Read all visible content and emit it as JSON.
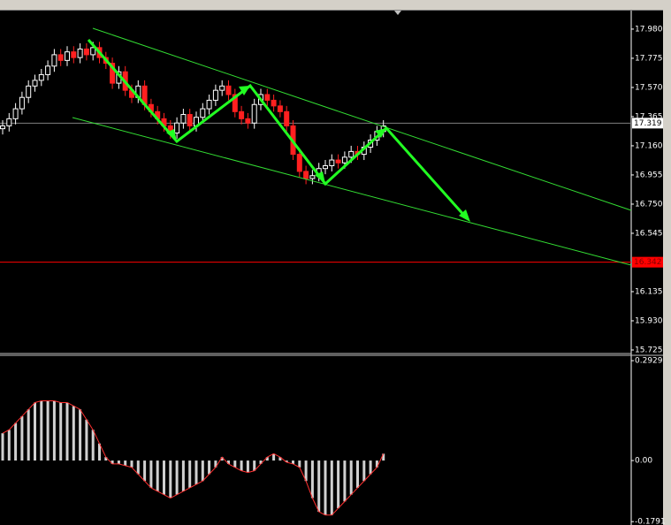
{
  "chart_data": [
    {
      "type": "candlestick",
      "open": [
        17.28,
        17.3,
        17.35,
        17.42,
        17.5,
        17.58,
        17.62,
        17.66,
        17.72,
        17.8,
        17.76,
        17.82,
        17.78,
        17.84,
        17.8,
        17.85,
        17.78,
        17.74,
        17.6,
        17.68,
        17.55,
        17.5,
        17.58,
        17.45,
        17.4,
        17.35,
        17.3,
        17.25,
        17.32,
        17.38,
        17.3,
        17.36,
        17.42,
        17.48,
        17.55,
        17.58,
        17.52,
        17.4,
        17.35,
        17.32,
        17.45,
        17.52,
        17.48,
        17.44,
        17.4,
        17.3,
        17.1,
        16.98,
        16.93,
        16.95,
        17.0,
        17.02,
        17.06,
        17.04,
        17.08,
        17.12,
        17.1,
        17.15,
        17.2,
        17.26
      ],
      "high": [
        17.34,
        17.39,
        17.46,
        17.54,
        17.62,
        17.66,
        17.7,
        17.76,
        17.84,
        17.84,
        17.86,
        17.86,
        17.88,
        17.88,
        17.89,
        17.89,
        17.82,
        17.78,
        17.72,
        17.72,
        17.59,
        17.62,
        17.62,
        17.49,
        17.44,
        17.39,
        17.34,
        17.36,
        17.42,
        17.42,
        17.4,
        17.46,
        17.52,
        17.59,
        17.62,
        17.62,
        17.56,
        17.44,
        17.39,
        17.49,
        17.56,
        17.56,
        17.52,
        17.48,
        17.44,
        17.34,
        17.14,
        17.02,
        16.99,
        17.04,
        17.06,
        17.1,
        17.1,
        17.12,
        17.16,
        17.16,
        17.19,
        17.24,
        17.3,
        17.34
      ],
      "low": [
        17.24,
        17.26,
        17.31,
        17.38,
        17.46,
        17.54,
        17.58,
        17.62,
        17.68,
        17.72,
        17.72,
        17.74,
        17.74,
        17.76,
        17.76,
        17.74,
        17.7,
        17.56,
        17.56,
        17.51,
        17.46,
        17.46,
        17.41,
        17.36,
        17.31,
        17.26,
        17.21,
        17.21,
        17.28,
        17.26,
        17.26,
        17.32,
        17.38,
        17.44,
        17.51,
        17.48,
        17.36,
        17.31,
        17.28,
        17.28,
        17.41,
        17.44,
        17.4,
        17.36,
        17.26,
        17.06,
        16.94,
        16.89,
        16.89,
        16.91,
        16.96,
        16.98,
        17.0,
        17.0,
        17.04,
        17.06,
        17.06,
        17.11,
        17.16,
        17.22
      ],
      "close": [
        17.3,
        17.35,
        17.42,
        17.5,
        17.58,
        17.62,
        17.66,
        17.72,
        17.8,
        17.76,
        17.82,
        17.78,
        17.84,
        17.8,
        17.85,
        17.78,
        17.74,
        17.6,
        17.68,
        17.55,
        17.5,
        17.58,
        17.45,
        17.4,
        17.35,
        17.3,
        17.25,
        17.32,
        17.38,
        17.3,
        17.36,
        17.42,
        17.48,
        17.55,
        17.58,
        17.52,
        17.4,
        17.35,
        17.32,
        17.45,
        17.52,
        17.48,
        17.44,
        17.4,
        17.3,
        17.1,
        16.98,
        16.93,
        16.95,
        17.0,
        17.02,
        17.06,
        17.04,
        17.08,
        17.12,
        17.1,
        17.15,
        17.2,
        17.26,
        17.3
      ],
      "up_color": "#ffffff",
      "down_color": "#ff2020",
      "ylim": [
        15.7,
        18.11
      ],
      "yticks": [
        {
          "value": 17.98,
          "label": "17.980"
        },
        {
          "value": 17.775,
          "label": "17.775"
        },
        {
          "value": 17.57,
          "label": "17.570"
        },
        {
          "value": 17.365,
          "label": "17.365"
        },
        {
          "value": 17.16,
          "label": "17.160"
        },
        {
          "value": 16.955,
          "label": "16.955"
        },
        {
          "value": 16.75,
          "label": "16.750"
        },
        {
          "value": 16.545,
          "label": "16.545"
        },
        {
          "value": 16.135,
          "label": "16.135"
        },
        {
          "value": 15.93,
          "label": "15.930"
        },
        {
          "value": 15.725,
          "label": "15.725"
        }
      ],
      "price_lines": [
        {
          "value": 17.319,
          "color": "#808080"
        },
        {
          "value": 16.342,
          "color": "#ff0000"
        }
      ]
    },
    {
      "type": "bar",
      "values": [
        0.08,
        0.09,
        0.11,
        0.13,
        0.15,
        0.17,
        0.175,
        0.175,
        0.175,
        0.17,
        0.17,
        0.16,
        0.15,
        0.12,
        0.09,
        0.05,
        0.01,
        -0.01,
        -0.01,
        -0.015,
        -0.02,
        -0.04,
        -0.06,
        -0.08,
        -0.09,
        -0.1,
        -0.11,
        -0.1,
        -0.09,
        -0.08,
        -0.07,
        -0.06,
        -0.04,
        -0.02,
        0.01,
        -0.01,
        -0.02,
        -0.03,
        -0.035,
        -0.03,
        -0.01,
        0.01,
        0.02,
        0.01,
        -0.005,
        -0.01,
        -0.02,
        -0.06,
        -0.11,
        -0.15,
        -0.16,
        -0.16,
        -0.14,
        -0.12,
        -0.1,
        -0.08,
        -0.06,
        -0.04,
        -0.02,
        0.02
      ],
      "color": "#d0d0d0",
      "line_color": "#ff3030",
      "ylim": [
        -0.189,
        0.306
      ],
      "yticks": [
        0.2929,
        {
          "value": 0,
          "label": "0.00"
        },
        -0.1791
      ]
    }
  ]
}
